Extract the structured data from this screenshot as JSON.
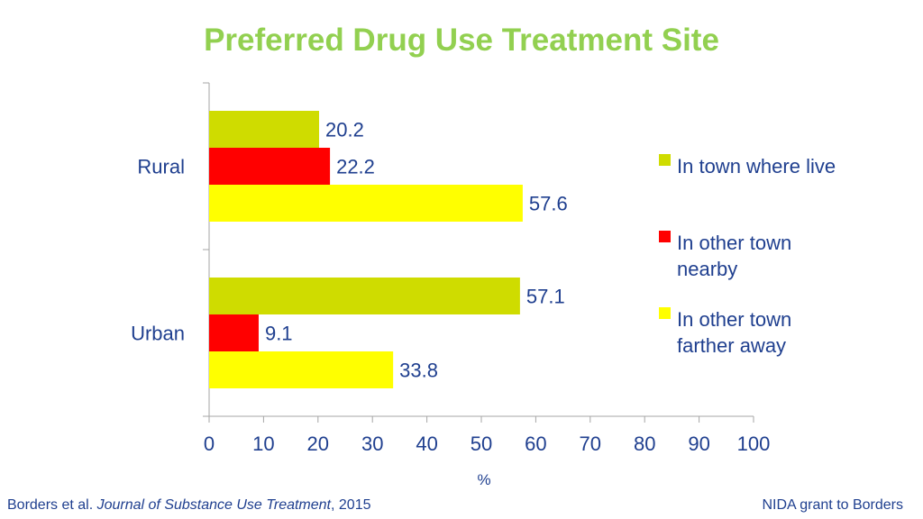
{
  "chart_data": {
    "type": "bar",
    "orientation": "horizontal",
    "title": "Preferred Drug Use Treatment Site",
    "xlabel": "%",
    "ylabel": "",
    "xlim": [
      0,
      100
    ],
    "xticks": [
      0,
      10,
      20,
      30,
      40,
      50,
      60,
      70,
      80,
      90,
      100
    ],
    "categories": [
      "Rural",
      "Urban"
    ],
    "series": [
      {
        "name": "In town where live",
        "values": [
          20.2,
          57.1
        ],
        "color": "#cfdc00"
      },
      {
        "name": "In other town nearby",
        "values": [
          22.2,
          9.1
        ],
        "color": "#ff0000"
      },
      {
        "name": "In other town farther away",
        "values": [
          57.6,
          33.8
        ],
        "color": "#ffff00"
      }
    ],
    "legend_position": "right",
    "title_color": "#92d050",
    "text_color": "#1f3f8f",
    "axis_color": "#a6a6a6"
  },
  "footer": {
    "citation_prefix": "Borders et al. ",
    "citation_journal": "Journal of Substance Use Treatment",
    "citation_suffix": ", 2015",
    "funding": "NIDA grant to Borders"
  }
}
